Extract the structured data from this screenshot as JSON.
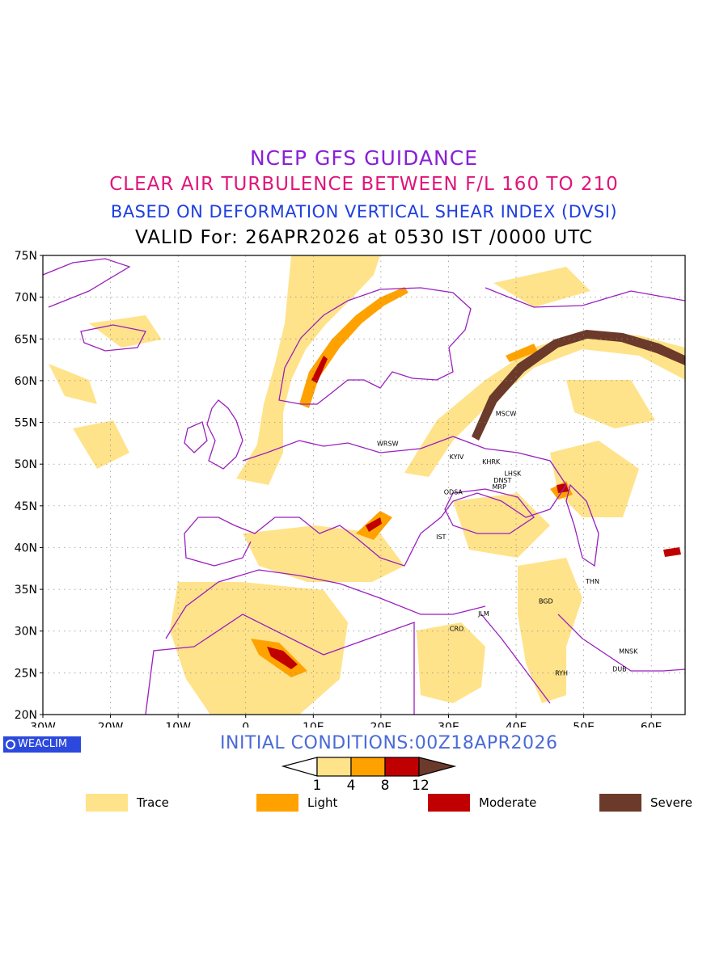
{
  "header": {
    "line1": "NCEP GFS GUIDANCE",
    "line2": "CLEAR AIR TURBULENCE BETWEEN F/L 160 TO 210",
    "line3": "BASED ON DEFORMATION VERTICAL SHEAR INDEX (DVSI)",
    "line4": "VALID For: 26APR2026 at 0530 IST /0000 UTC"
  },
  "colors": {
    "line1": "#8a1fd6",
    "line2": "#e0157a",
    "line3": "#1f3fe0",
    "line4": "#000000",
    "trace": "#ffe38a",
    "light": "#ffa200",
    "moderate": "#c00000",
    "severe": "#6b3a2a",
    "border": "#9a1fbf",
    "init": "#4a6ad8",
    "badge": "#2c49dd"
  },
  "axes": {
    "lat_labels": [
      "75N",
      "70N",
      "65N",
      "60N",
      "55N",
      "50N",
      "45N",
      "40N",
      "35N",
      "30N",
      "25N",
      "20N"
    ],
    "lon_labels": [
      "30W",
      "20W",
      "10W",
      "0",
      "10E",
      "20E",
      "30E",
      "40E",
      "50E",
      "60E"
    ]
  },
  "cities": [
    {
      "code": "MSCW",
      "lon": 38.5,
      "lat": 55.8
    },
    {
      "code": "WRSW",
      "lon": 21.0,
      "lat": 52.2
    },
    {
      "code": "KYIV",
      "lon": 31.2,
      "lat": 50.6
    },
    {
      "code": "KHRK",
      "lon": 36.3,
      "lat": 50.0
    },
    {
      "code": "LHSK",
      "lon": 39.5,
      "lat": 48.6
    },
    {
      "code": "DNST",
      "lon": 38.0,
      "lat": 47.8
    },
    {
      "code": "MRP",
      "lon": 37.5,
      "lat": 47.0
    },
    {
      "code": "ODSA",
      "lon": 30.7,
      "lat": 46.4
    },
    {
      "code": "IST",
      "lon": 28.9,
      "lat": 41.0
    },
    {
      "code": "THN",
      "lon": 51.3,
      "lat": 35.7
    },
    {
      "code": "BGD",
      "lon": 44.4,
      "lat": 33.3
    },
    {
      "code": "JLM",
      "lon": 35.2,
      "lat": 31.8
    },
    {
      "code": "CRO",
      "lon": 31.2,
      "lat": 30.0
    },
    {
      "code": "MNSK",
      "lon": 56.6,
      "lat": 27.3
    },
    {
      "code": "DUB",
      "lon": 55.3,
      "lat": 25.2
    },
    {
      "code": "RYH",
      "lon": 46.7,
      "lat": 24.7
    }
  ],
  "footer": {
    "initial_conditions": "INITIAL CONDITIONS:00Z18APR2026",
    "badge": "WEACLIM"
  },
  "colorbar": {
    "ticks": [
      "1",
      "4",
      "8",
      "12"
    ]
  },
  "legend": [
    {
      "label": "Trace",
      "color": "#ffe38a"
    },
    {
      "label": "Light",
      "color": "#ffa200"
    },
    {
      "label": "Moderate",
      "color": "#c00000"
    },
    {
      "label": "Severe",
      "color": "#6b3a2a"
    }
  ]
}
